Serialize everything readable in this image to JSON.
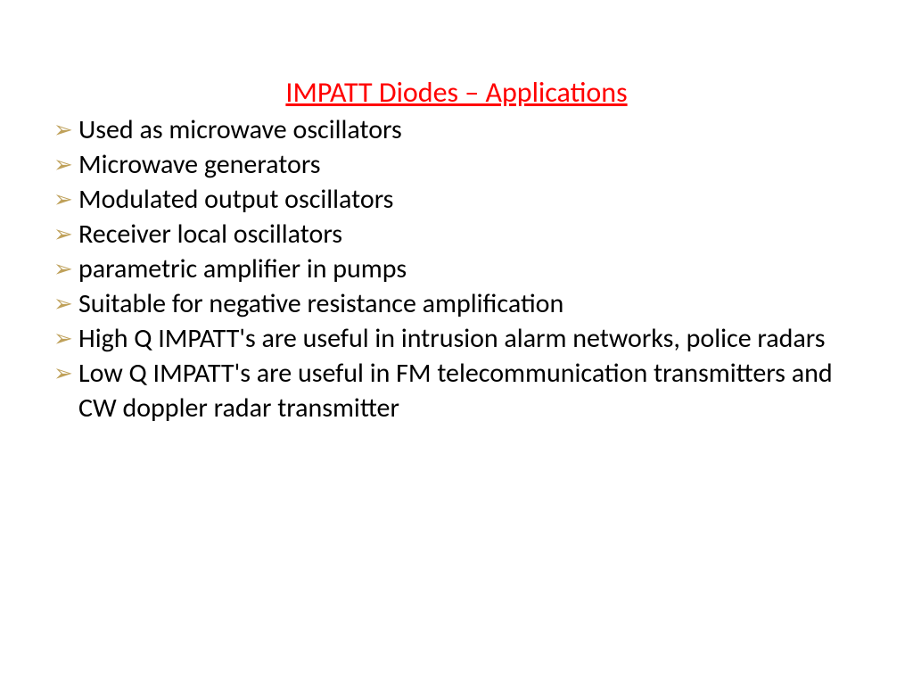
{
  "colors": {
    "title": "#ff0000",
    "body_text": "#000000",
    "bullet": "#bfa15a",
    "background": "#ffffff"
  },
  "typography": {
    "title_fontsize": 32,
    "body_fontsize": 30,
    "font_family": "Calibri"
  },
  "title": "IMPATT Diodes – Applications",
  "bullet_glyph": "➢",
  "items": [
    "Used as microwave oscillators",
    "Microwave generators",
    "Modulated output oscillators",
    "Receiver local oscillators",
    "parametric amplifier in pumps",
    "Suitable for negative resistance amplification",
    "High Q IMPATT's are useful in intrusion alarm networks, police radars",
    "Low Q IMPATT's are useful in FM telecommunication transmitters and CW doppler radar transmitter"
  ]
}
